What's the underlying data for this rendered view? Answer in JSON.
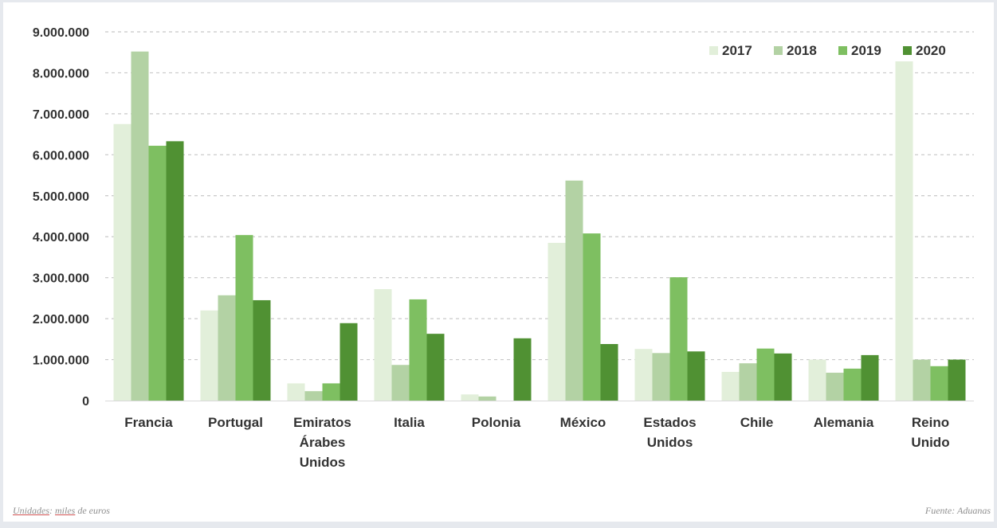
{
  "chart_data": {
    "type": "bar",
    "title": "",
    "xlabel": "",
    "ylabel": "",
    "ylim": [
      0,
      9000000
    ],
    "yticks": [
      0,
      1000000,
      2000000,
      3000000,
      4000000,
      5000000,
      6000000,
      7000000,
      8000000,
      9000000
    ],
    "ytick_labels": [
      "0",
      "1.000.000",
      "2.000.000",
      "3.000.000",
      "4.000.000",
      "5.000.000",
      "6.000.000",
      "7.000.000",
      "8.000.000",
      "9.000.000"
    ],
    "grid": "horizontal dashed",
    "legend_position": "top-right",
    "categories": [
      "Francia",
      "Portugal",
      "Emiratos Árabes Unidos",
      "Italia",
      "Polonia",
      "México",
      "Estados Unidos",
      "Chile",
      "Alemania",
      "Reino Unido"
    ],
    "category_lines": [
      [
        "Francia"
      ],
      [
        "Portugal"
      ],
      [
        "Emiratos",
        "Árabes",
        "Unidos"
      ],
      [
        "Italia"
      ],
      [
        "Polonia"
      ],
      [
        "México"
      ],
      [
        "Estados",
        "Unidos"
      ],
      [
        "Chile"
      ],
      [
        "Alemania"
      ],
      [
        "Reino",
        "Unido"
      ]
    ],
    "series": [
      {
        "name": "2017",
        "color": "#e2efda",
        "values": [
          6750000,
          2200000,
          420000,
          2720000,
          150000,
          3850000,
          1260000,
          700000,
          1000000,
          8280000
        ]
      },
      {
        "name": "2018",
        "color": "#b3d2a4",
        "values": [
          8520000,
          2570000,
          230000,
          870000,
          100000,
          5370000,
          1160000,
          910000,
          680000,
          1000000
        ]
      },
      {
        "name": "2019",
        "color": "#7ebf61",
        "values": [
          6220000,
          4040000,
          420000,
          2470000,
          0,
          4080000,
          3010000,
          1270000,
          780000,
          840000
        ]
      },
      {
        "name": "2020",
        "color": "#509133",
        "values": [
          6330000,
          2450000,
          1890000,
          1630000,
          1520000,
          1380000,
          1200000,
          1150000,
          1110000,
          1000000
        ]
      }
    ]
  },
  "footer": {
    "units_label": "Unidades",
    "units_colon": ":",
    "units_value_word": "miles",
    "units_rest": " de euros",
    "source_text": "Fuente: Aduanas"
  }
}
